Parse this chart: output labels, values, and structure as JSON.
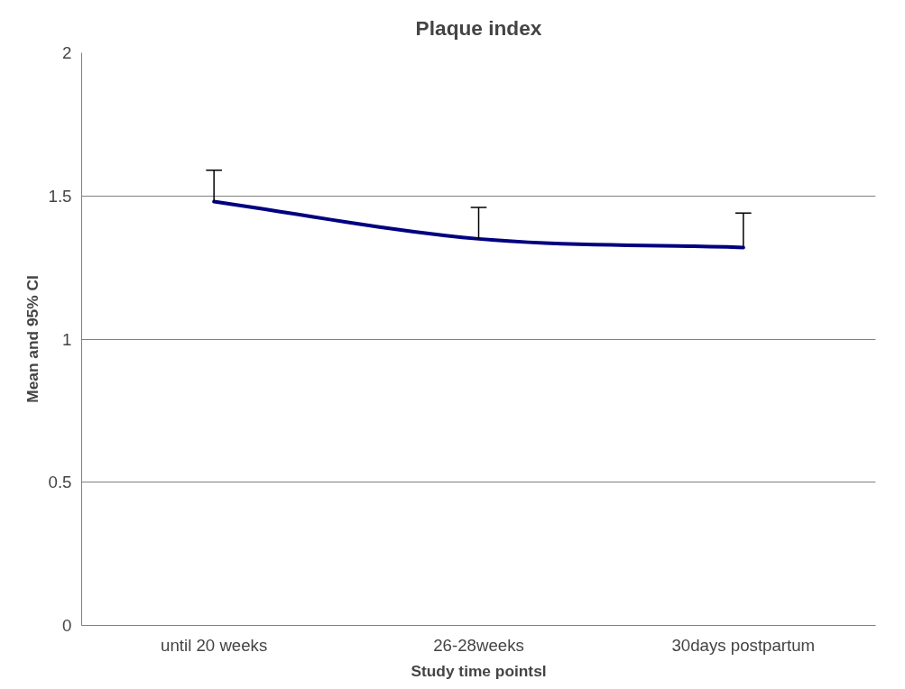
{
  "chart_data": {
    "type": "line",
    "title": "Plaque index",
    "xlabel": "Study time pointsl",
    "ylabel": "Mean and 95% CI",
    "categories": [
      "until 20 weeks",
      "26-28weeks",
      "30days postpartum"
    ],
    "series": [
      {
        "color": "#000080",
        "values": [
          1.48,
          1.35,
          1.32
        ],
        "errors": [
          [
            1.48,
            1.59
          ],
          [
            1.35,
            1.46
          ],
          [
            1.32,
            1.44
          ]
        ]
      }
    ],
    "ylim": [
      0,
      2
    ],
    "yticks": [
      0,
      0.5,
      1,
      1.5,
      2
    ],
    "grid": "y",
    "marker": "none",
    "line_style": "solid"
  }
}
